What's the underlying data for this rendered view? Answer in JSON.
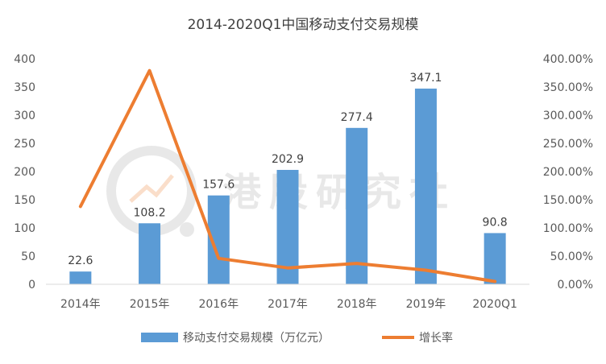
{
  "chart_data": {
    "type": "bar+line",
    "title": "2014-2020Q1中国移动支付交易规模",
    "categories": [
      "2014年",
      "2015年",
      "2016年",
      "2017年",
      "2018年",
      "2019年",
      "2020Q1"
    ],
    "series": [
      {
        "name": "移动支付交易规模（万亿元）",
        "type": "bar",
        "axis": "left",
        "color": "#5b9bd5",
        "values": [
          22.6,
          108.2,
          157.6,
          202.9,
          277.4,
          347.1,
          90.8
        ],
        "data_labels": [
          "22.6",
          "108.2",
          "157.6",
          "202.9",
          "277.4",
          "347.1",
          "90.8"
        ]
      },
      {
        "name": "增长率",
        "type": "line",
        "axis": "right",
        "color": "#ed7d31",
        "values": [
          1.38,
          3.79,
          0.46,
          0.29,
          0.37,
          0.25,
          0.05
        ]
      }
    ],
    "y_left": {
      "ylim": [
        0,
        400
      ],
      "ticks": [
        "0",
        "50",
        "100",
        "150",
        "200",
        "250",
        "300",
        "350",
        "400"
      ]
    },
    "y_right": {
      "ylim": [
        0,
        4
      ],
      "ticks": [
        "0.00%",
        "50.00%",
        "100.00%",
        "150.00%",
        "200.00%",
        "250.00%",
        "300.00%",
        "350.00%",
        "400.00%"
      ]
    },
    "grid": false,
    "legend_position": "bottom"
  },
  "watermark": {
    "text": "港股研究社"
  }
}
